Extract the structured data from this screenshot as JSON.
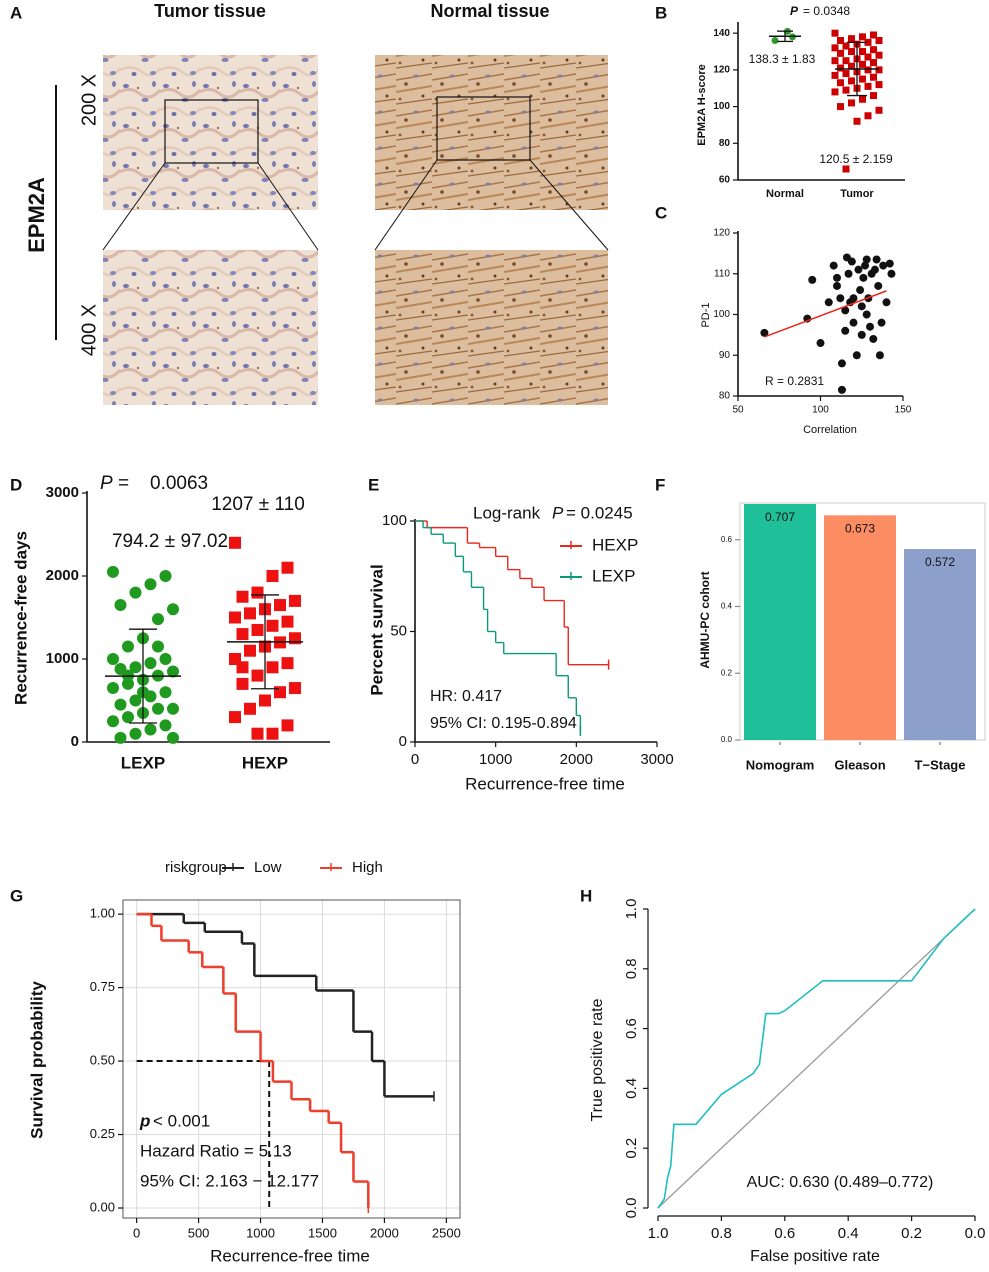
{
  "figure": {
    "panel_labels": [
      "A",
      "B",
      "C",
      "D",
      "E",
      "F",
      "G",
      "H"
    ],
    "panel_a": {
      "columns": [
        "Tumor tissue",
        "Normal tissue"
      ],
      "rows": [
        "200 X",
        "400 X"
      ],
      "marker": "EPM2A"
    }
  },
  "chart_data": [
    {
      "type": "dotplot",
      "ylabel": "EPM2A H-score",
      "ylim": [
        60,
        145
      ],
      "yticks": [
        60,
        80,
        100,
        120,
        140
      ],
      "series": [
        {
          "name": "Normal",
          "color": "#2e9a2e",
          "marker": "circle",
          "values": [
            136,
            138,
            141
          ],
          "mean": 138.3,
          "sd": 2.8
        },
        {
          "name": "Tumor",
          "color": "#cc0000",
          "marker": "square",
          "values": [
            140,
            139,
            138,
            137,
            136,
            136,
            135,
            134,
            133,
            132,
            131,
            130,
            130,
            129,
            128,
            127,
            126,
            125,
            125,
            124,
            123,
            122,
            121,
            120,
            120,
            119,
            118,
            117,
            116,
            115,
            114,
            113,
            112,
            111,
            110,
            109,
            108,
            106,
            104,
            102,
            100,
            98,
            95,
            92,
            66
          ],
          "mean": 120.5,
          "sd": 14.5
        }
      ],
      "annotations": [
        "P",
        "= 0.0348",
        "138.3 ± 1.83",
        "120.5 ± 2.159"
      ]
    },
    {
      "type": "scatter",
      "ylabel": "PD-1",
      "xlabel": "Correlation",
      "xlim": [
        50,
        150
      ],
      "xticks": [
        50,
        100,
        150
      ],
      "ylim": [
        80,
        120
      ],
      "yticks": [
        80,
        90,
        100,
        110,
        120
      ],
      "color": "#111111",
      "x": [
        66,
        92,
        95,
        100,
        105,
        108,
        110,
        112,
        113,
        115,
        115,
        117,
        118,
        119,
        120,
        120,
        122,
        123,
        124,
        125,
        125,
        126,
        127,
        128,
        128,
        129,
        130,
        131,
        132,
        133,
        134,
        135,
        136,
        137,
        138,
        140,
        142,
        143,
        113,
        116,
        110
      ],
      "y": [
        95.5,
        99,
        108.5,
        93,
        103,
        112,
        109,
        104,
        88,
        101,
        96,
        110,
        103,
        113,
        104,
        98,
        90,
        111,
        106,
        102,
        95,
        109,
        112,
        113.5,
        100,
        104,
        97,
        110,
        94,
        111,
        113.5,
        107,
        90,
        98,
        112,
        103,
        112.5,
        110,
        81.5,
        114,
        107
      ],
      "fit": {
        "color": "#e8281e",
        "x": [
          66,
          140
        ],
        "y": [
          94.5,
          105.8
        ]
      },
      "annotations": [
        "R = 0.2831"
      ]
    },
    {
      "type": "dotplot",
      "ylabel": "Recurrence-free days",
      "ylim": [
        0,
        3000
      ],
      "yticks": [
        0,
        1000,
        2000,
        3000
      ],
      "series": [
        {
          "name": "LEXP",
          "color": "#1f9a1f",
          "marker": "circle",
          "values": [
            2050,
            2000,
            1900,
            1800,
            1650,
            1600,
            1480,
            1250,
            1150,
            1000,
            1000,
            950,
            900,
            880,
            850,
            800,
            750,
            700,
            650,
            600,
            550,
            500,
            450,
            400,
            400,
            350,
            300,
            250,
            200,
            150,
            100,
            50,
            50,
            1150,
            600,
            800
          ],
          "mean": 794.2,
          "sd": 565
        },
        {
          "name": "HEXP",
          "color": "#ee1111",
          "marker": "square",
          "values": [
            2400,
            2100,
            2000,
            1800,
            1750,
            1700,
            1650,
            1600,
            1550,
            1500,
            1450,
            1400,
            1350,
            1300,
            1250,
            1200,
            1150,
            1100,
            1000,
            950,
            900,
            800,
            700,
            650,
            600,
            500,
            400,
            300,
            200,
            100,
            100,
            900
          ],
          "mean": 1207,
          "sd": 565
        }
      ],
      "annotations": [
        "P",
        "=",
        "0.0063",
        "1207 ± 110",
        "794.2 ± 97.02"
      ]
    },
    {
      "type": "km",
      "ylabel": "Percent survival",
      "xlabel": "Recurrence-free time",
      "xlim": [
        0,
        3000
      ],
      "xticks": [
        0,
        1000,
        2000,
        3000
      ],
      "ylim": [
        0,
        100
      ],
      "yticks": [
        0,
        50,
        100
      ],
      "series": [
        {
          "name": "HEXP",
          "color": "#e8281e",
          "x": [
            0,
            150,
            650,
            800,
            1000,
            1150,
            1300,
            1450,
            1600,
            1850,
            1900,
            2400
          ],
          "y": [
            100,
            97,
            90,
            88,
            84,
            78,
            74,
            70,
            64,
            52,
            35,
            35
          ]
        },
        {
          "name": "LEXP",
          "color": "#0a9a7a",
          "x": [
            0,
            100,
            200,
            350,
            500,
            600,
            700,
            850,
            900,
            1000,
            1100,
            1750,
            1900,
            2000,
            2050
          ],
          "y": [
            100,
            97,
            94,
            90,
            84,
            77,
            70,
            60,
            50,
            45,
            40,
            30,
            20,
            12,
            5
          ]
        }
      ],
      "annotations": [
        "Log-rank",
        "P",
        "= 0.0245",
        "HR: 0.417",
        "95% CI: 0.195-0.894"
      ]
    },
    {
      "type": "bar",
      "ylabel": "AHMU-PC cohort",
      "categories": [
        "Nomogram",
        "Gleason",
        "T−Stage"
      ],
      "values": [
        0.707,
        0.673,
        0.572
      ],
      "colors": [
        "#1fbf9a",
        "#fc8d62",
        "#8da0cb"
      ],
      "ylim": [
        0,
        0.71
      ],
      "yticks": [
        {
          "value": 0,
          "label": "0.0"
        },
        0.2,
        0.4,
        0.6
      ]
    },
    {
      "type": "km",
      "ylabel": "Survival probability",
      "xlabel": "Recurrence-free time",
      "legend_title": "riskgroup",
      "grid": true,
      "xlim": [
        -110,
        2610
      ],
      "xticks": [
        0,
        500,
        1000,
        1500,
        2000,
        2500
      ],
      "ylim": [
        -0.034,
        1.048
      ],
      "yticks": [
        {
          "value": 1,
          "label": "1.00"
        },
        0.75,
        {
          "value": 0.5,
          "label": "0.50"
        },
        0.25,
        {
          "value": 0,
          "label": "0.00"
        }
      ],
      "series": [
        {
          "name": "Low",
          "color": "#222222",
          "x": [
            0,
            380,
            550,
            850,
            950,
            1450,
            1750,
            1900,
            2000,
            2400
          ],
          "y": [
            1,
            0.97,
            0.94,
            0.9,
            0.79,
            0.74,
            0.6,
            0.5,
            0.38,
            0.38
          ]
        },
        {
          "name": "High",
          "color": "#f03c2a",
          "x": [
            0,
            120,
            200,
            420,
            530,
            700,
            800,
            1000,
            1100,
            1250,
            1400,
            1550,
            1650,
            1750,
            1870
          ],
          "y": [
            1,
            0.96,
            0.91,
            0.87,
            0.82,
            0.73,
            0.6,
            0.5,
            0.43,
            0.37,
            0.33,
            0.29,
            0.19,
            0.09,
            0
          ]
        }
      ],
      "median_survival": 0.5,
      "median_time": 1070,
      "annotations": [
        "p",
        "< 0.001",
        "Hazard Ratio = 5.13",
        "95% CI: 2.163 − 12.177"
      ]
    },
    {
      "type": "roc",
      "ylabel": "True positive rate",
      "xlabel": "False positive rate",
      "xlim": [
        1,
        0
      ],
      "xticks": [
        {
          "value": 1,
          "label": "1.0"
        },
        0.8,
        0.6,
        0.4,
        0.2,
        {
          "value": 0,
          "label": "0.0"
        }
      ],
      "ylim": [
        0,
        1
      ],
      "yticks": [
        {
          "value": 0,
          "label": "0.0"
        },
        0.2,
        0.4,
        0.6,
        0.8,
        {
          "value": 1,
          "label": "1.0"
        }
      ],
      "color": "#1fbfbf",
      "x": [
        1,
        0.98,
        0.97,
        0.96,
        0.95,
        0.88,
        0.8,
        0.7,
        0.68,
        0.66,
        0.62,
        0.6,
        0.48,
        0.2,
        0.1,
        0
      ],
      "y": [
        0,
        0.03,
        0.1,
        0.14,
        0.28,
        0.28,
        0.38,
        0.45,
        0.48,
        0.65,
        0.65,
        0.66,
        0.76,
        0.76,
        0.9,
        1
      ],
      "annotations": [
        "AUC: 0.630 (0.489–0.772)"
      ]
    }
  ]
}
